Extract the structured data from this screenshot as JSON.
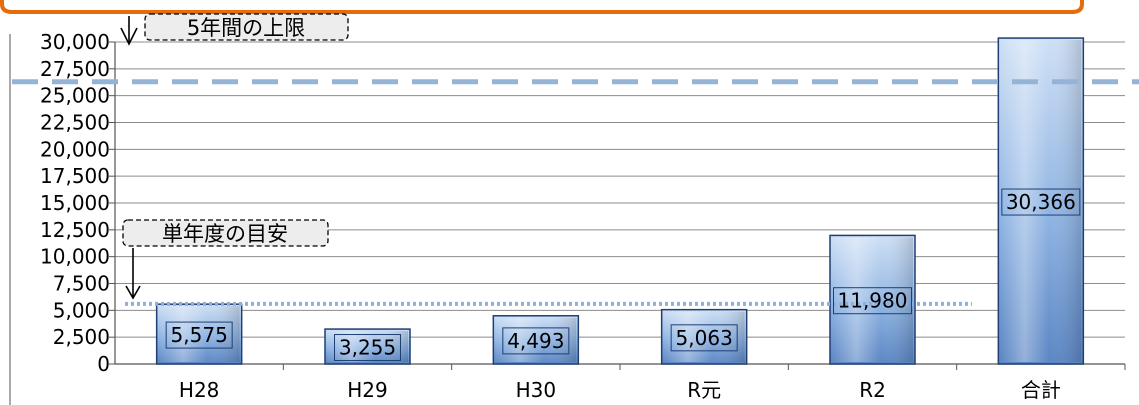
{
  "chart_data": {
    "type": "bar",
    "categories": [
      "H28",
      "H29",
      "H30",
      "R元",
      "R2",
      "合計"
    ],
    "values": [
      5575,
      3255,
      4493,
      5063,
      11980,
      30366
    ],
    "data_labels": [
      "5,575",
      "3,255",
      "4,493",
      "5,063",
      "11,980",
      "30,366"
    ],
    "ylim": [
      0,
      30000
    ],
    "yticks": [
      "0",
      "2,500",
      "5,000",
      "7,500",
      "10,000",
      "12,500",
      "15,000",
      "17,500",
      "20,000",
      "22,500",
      "25,000",
      "27,500",
      "30,000"
    ],
    "grid": true,
    "reference_lines": [
      {
        "name": "5年間の上限",
        "value": 26300,
        "style": "dashed"
      },
      {
        "name": "単年度の目安",
        "value": 5600,
        "style": "dotted"
      }
    ],
    "colors": {
      "bar_top": "#cfe0f5",
      "bar_mid": "#8fb4e3",
      "bar_bottom": "#5b86c4",
      "bar_stroke": "#1f3f73",
      "upper_line": "#95b3d7",
      "guide_line": "#8fb0d8",
      "frame_accent": "#e46c0a",
      "callout_fill": "#ededed"
    }
  }
}
